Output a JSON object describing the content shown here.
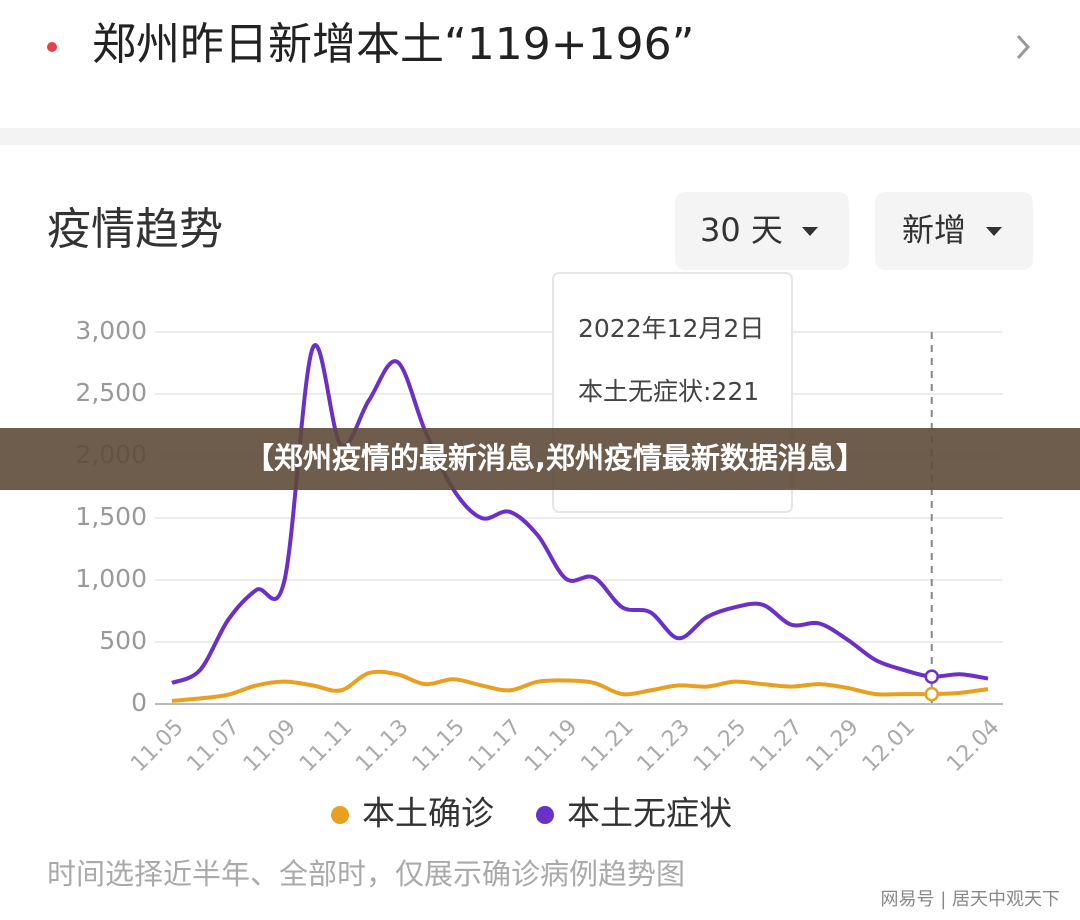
{
  "header": {
    "title": "郑州昨日新增本土“119+196”"
  },
  "section_title": "疫情趋势",
  "controls": {
    "range": "30 天",
    "mode": "新增"
  },
  "banner": "【郑州疫情的最新消息,郑州疫情最新数据消息】",
  "footer_note": "时间选择近半年、全部时，仅展示确诊病例趋势图",
  "watermark": "网易号 | 居天中观天下",
  "chart_data": {
    "type": "line",
    "categories": [
      "11.05",
      null,
      "11.07",
      null,
      "11.09",
      null,
      "11.11",
      null,
      "11.13",
      null,
      "11.15",
      null,
      "11.17",
      null,
      "11.19",
      null,
      "11.21",
      null,
      "11.23",
      null,
      "11.25",
      null,
      "11.27",
      null,
      "11.29",
      null,
      "12.01",
      null,
      null,
      "12.04"
    ],
    "series": [
      {
        "name": "本土确诊",
        "color": "#e9a021",
        "values": [
          25,
          45,
          75,
          150,
          180,
          150,
          110,
          250,
          240,
          160,
          200,
          150,
          110,
          180,
          190,
          170,
          80,
          110,
          150,
          140,
          180,
          160,
          140,
          160,
          130,
          80,
          80,
          80,
          90,
          120
        ]
      },
      {
        "name": "本土无症状",
        "color": "#6a30c8",
        "values": [
          170,
          275,
          680,
          920,
          1000,
          2870,
          2090,
          2450,
          2760,
          2200,
          1730,
          1500,
          1550,
          1360,
          1010,
          1020,
          780,
          740,
          530,
          700,
          780,
          800,
          640,
          650,
          520,
          355,
          275,
          221,
          240,
          205
        ]
      }
    ],
    "ylim": [
      0,
      3000
    ],
    "yticks": [
      0,
      500,
      {
        "value": 1000,
        "label": "1,000"
      },
      {
        "value": 1500,
        "label": "1,500"
      },
      {
        "value": 2000,
        "label": "2,000"
      },
      {
        "value": 2500,
        "label": "2,500"
      },
      {
        "value": 3000,
        "label": "3,000"
      }
    ],
    "grid": true,
    "legend": "bottom",
    "tooltip": {
      "date": "2022年12月2日",
      "text": "本土无症状:221"
    }
  }
}
